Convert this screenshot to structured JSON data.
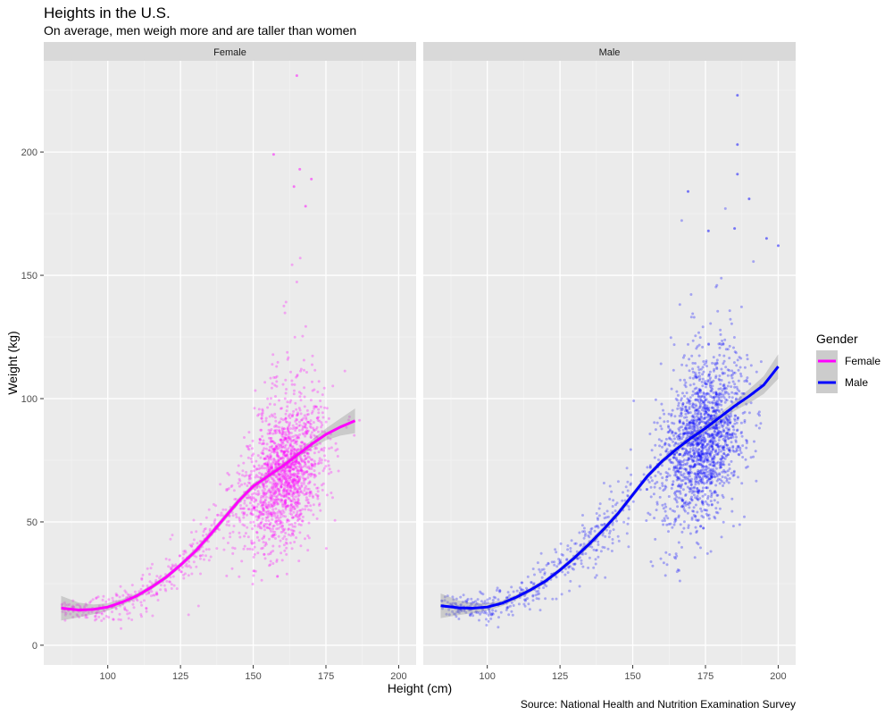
{
  "chart_data": {
    "type": "scatter",
    "title": "Heights in the U.S.",
    "subtitle": "On average, men weigh more and are taller than women",
    "xlabel": "Height (cm)",
    "ylabel": "Weight (kg)",
    "caption": "Source: National Health and Nutrition Examination Survey",
    "xlim": [
      78,
      206
    ],
    "ylim": [
      -8,
      237
    ],
    "x_ticks": [
      100,
      125,
      150,
      175,
      200
    ],
    "y_ticks": [
      0,
      50,
      100,
      150,
      200
    ],
    "x_tick_labels": [
      "100",
      "125",
      "150",
      "175",
      "200"
    ],
    "y_tick_labels": [
      "0",
      "50",
      "100",
      "150",
      "200"
    ],
    "grid": true,
    "legend": {
      "title": "Gender",
      "position": "right",
      "entries": [
        {
          "label": "Female",
          "color": "#ff00ff"
        },
        {
          "label": "Male",
          "color": "#0000ff"
        }
      ]
    },
    "panels": [
      {
        "label": "Female",
        "color": "#ff00ff",
        "smooth_x": [
          84,
          90,
          95,
          100,
          105,
          110,
          115,
          120,
          125,
          130,
          135,
          140,
          145,
          150,
          155,
          160,
          165,
          170,
          175,
          180,
          185
        ],
        "smooth_y": [
          15,
          14.3,
          14.5,
          15.5,
          17.5,
          20,
          23.5,
          27.5,
          32.5,
          38,
          44.5,
          51.5,
          58.5,
          64.5,
          68.5,
          72.5,
          77,
          81.5,
          85.5,
          88.5,
          91
        ],
        "band_half_width": [
          5,
          3,
          2,
          1.5,
          1.2,
          1,
          1,
          1,
          1,
          1.2,
          1.3,
          1.3,
          1.3,
          1.2,
          1.1,
          1.1,
          1.2,
          1.6,
          2.4,
          3.5,
          5
        ],
        "notable_points": [
          [
            165,
            231
          ],
          [
            157,
            199
          ],
          [
            166,
            193
          ],
          [
            170,
            189
          ],
          [
            164,
            186
          ],
          [
            168,
            178
          ]
        ]
      },
      {
        "label": "Male",
        "color": "#0000ff",
        "smooth_x": [
          84,
          90,
          95,
          100,
          105,
          110,
          115,
          120,
          125,
          130,
          135,
          140,
          145,
          150,
          155,
          160,
          165,
          170,
          175,
          180,
          185,
          190,
          195,
          200
        ],
        "smooth_y": [
          16,
          15.2,
          15,
          15.5,
          17,
          19.5,
          22.5,
          26,
          30.5,
          35.5,
          41,
          47,
          53.5,
          61,
          68.5,
          74.5,
          79.5,
          84,
          88,
          92.5,
          97,
          101,
          105.5,
          113
        ],
        "band_half_width": [
          5,
          3,
          2,
          1.5,
          1.2,
          1,
          1,
          1,
          1,
          1.2,
          1.3,
          1.3,
          1.3,
          1.2,
          1.1,
          1.1,
          1.2,
          1.3,
          1.4,
          1.6,
          2,
          2.8,
          3.6,
          5
        ],
        "notable_points": [
          [
            186,
            223
          ],
          [
            186,
            203
          ],
          [
            186,
            191
          ],
          [
            190,
            181
          ],
          [
            169,
            184
          ],
          [
            196,
            165
          ],
          [
            200,
            162
          ],
          [
            176,
            168
          ],
          [
            185,
            169
          ]
        ]
      }
    ]
  }
}
